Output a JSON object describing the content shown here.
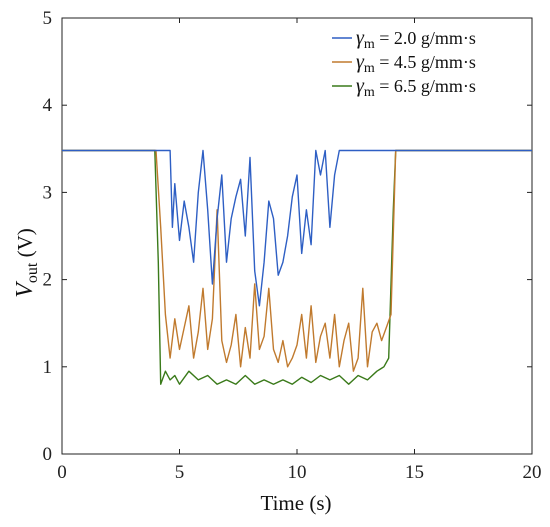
{
  "chart_data": {
    "type": "line",
    "xlabel": "Time (s)",
    "ylabel_main": "V",
    "ylabel_sub": "out",
    "ylabel_unit": " (V)",
    "xlim": [
      0,
      20
    ],
    "ylim": [
      0,
      5
    ],
    "xticks": [
      0,
      5,
      10,
      15,
      20
    ],
    "yticks": [
      0,
      1,
      2,
      3,
      4,
      5
    ],
    "grid": false,
    "legend_position": "top-right",
    "series": [
      {
        "name": "γm = 2.0 g/mm·s",
        "legend_symbol": "γ",
        "legend_sub": "m",
        "legend_rest": " = 2.0 g/mm·s",
        "color": "#2e5fc4",
        "x": [
          0,
          4.6,
          4.7,
          4.8,
          5.0,
          5.2,
          5.4,
          5.6,
          5.8,
          6.0,
          6.2,
          6.4,
          6.6,
          6.8,
          7.0,
          7.2,
          7.4,
          7.6,
          7.8,
          8.0,
          8.2,
          8.4,
          8.6,
          8.8,
          9.0,
          9.2,
          9.4,
          9.6,
          9.8,
          10.0,
          10.2,
          10.4,
          10.6,
          10.8,
          11.0,
          11.2,
          11.4,
          11.6,
          11.8,
          12.0,
          13.0,
          14.0,
          20
        ],
        "y": [
          3.48,
          3.48,
          2.6,
          3.1,
          2.45,
          2.9,
          2.6,
          2.2,
          3.0,
          3.48,
          2.8,
          1.95,
          2.7,
          3.2,
          2.2,
          2.7,
          2.95,
          3.15,
          2.5,
          3.4,
          2.1,
          1.7,
          2.2,
          2.9,
          2.7,
          2.05,
          2.2,
          2.5,
          2.95,
          3.2,
          2.3,
          2.8,
          2.4,
          3.48,
          3.2,
          3.48,
          2.6,
          3.2,
          3.48,
          3.48,
          3.48,
          3.48,
          3.48
        ]
      },
      {
        "name": "γm = 4.5 g/mm·s",
        "legend_symbol": "γ",
        "legend_sub": "m",
        "legend_rest": " = 4.5 g/mm·s",
        "color": "#c07a2e",
        "x": [
          0,
          4.0,
          4.2,
          4.4,
          4.6,
          4.8,
          5.0,
          5.2,
          5.4,
          5.6,
          5.8,
          6.0,
          6.2,
          6.4,
          6.6,
          6.8,
          7.0,
          7.2,
          7.4,
          7.6,
          7.8,
          8.0,
          8.2,
          8.4,
          8.6,
          8.8,
          9.0,
          9.2,
          9.4,
          9.6,
          9.8,
          10.0,
          10.2,
          10.4,
          10.6,
          10.8,
          11.0,
          11.2,
          11.4,
          11.6,
          11.8,
          12.0,
          12.2,
          12.4,
          12.6,
          12.8,
          13.0,
          13.2,
          13.4,
          13.6,
          13.8,
          14.0,
          14.2,
          20
        ],
        "y": [
          3.48,
          3.48,
          2.6,
          1.6,
          1.1,
          1.55,
          1.2,
          1.45,
          1.7,
          1.1,
          1.4,
          1.9,
          1.2,
          1.55,
          2.8,
          1.3,
          1.05,
          1.25,
          1.6,
          1.0,
          1.45,
          1.1,
          1.95,
          1.2,
          1.35,
          1.9,
          1.2,
          1.05,
          1.3,
          1.0,
          1.1,
          1.25,
          1.6,
          1.1,
          1.7,
          1.05,
          1.35,
          1.5,
          1.1,
          1.6,
          1.0,
          1.3,
          1.5,
          0.95,
          1.1,
          1.9,
          1.0,
          1.4,
          1.5,
          1.3,
          1.45,
          1.6,
          3.48,
          3.48
        ]
      },
      {
        "name": "γm = 6.5 g/mm·s",
        "legend_symbol": "γ",
        "legend_sub": "m",
        "legend_rest": " = 6.5 g/mm·s",
        "color": "#3a7a1a",
        "x": [
          0,
          3.95,
          4.1,
          4.2,
          4.4,
          4.6,
          4.8,
          5.0,
          5.4,
          5.8,
          6.2,
          6.6,
          7.0,
          7.4,
          7.8,
          8.2,
          8.6,
          9.0,
          9.4,
          9.8,
          10.2,
          10.6,
          11.0,
          11.4,
          11.8,
          12.2,
          12.6,
          13.0,
          13.4,
          13.7,
          13.9,
          14.1,
          14.2,
          20
        ],
        "y": [
          3.48,
          3.48,
          2.2,
          0.8,
          0.95,
          0.85,
          0.9,
          0.8,
          0.95,
          0.85,
          0.9,
          0.8,
          0.85,
          0.8,
          0.9,
          0.8,
          0.85,
          0.8,
          0.85,
          0.8,
          0.88,
          0.82,
          0.9,
          0.85,
          0.9,
          0.8,
          0.9,
          0.85,
          0.95,
          1.0,
          1.1,
          2.8,
          3.48,
          3.48
        ]
      }
    ]
  }
}
